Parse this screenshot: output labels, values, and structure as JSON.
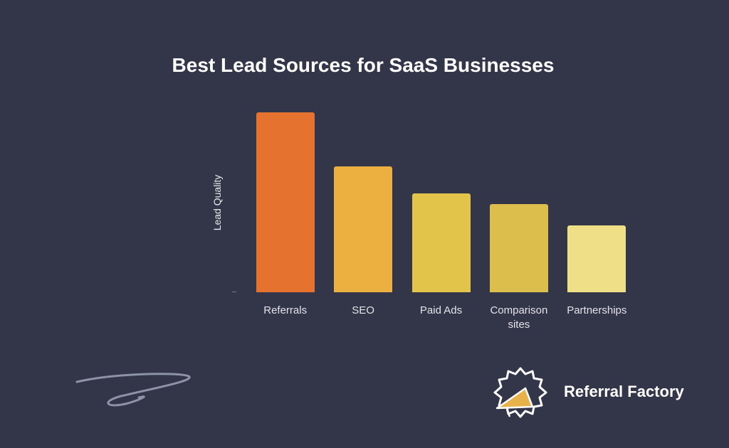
{
  "chart_data": {
    "type": "bar",
    "title": "Best Lead Sources for SaaS Businesses",
    "y_label": "Lead Quality",
    "categories": [
      "Referrals",
      "SEO",
      "Paid Ads",
      "Comparison sites",
      "Partnerships"
    ],
    "values": [
      100,
      70,
      55,
      49,
      37
    ],
    "colors": [
      "#e5732f",
      "#ebb03f",
      "#e2c44a",
      "#dcbe4c",
      "#efdf86"
    ],
    "ylim": [
      0,
      100
    ]
  },
  "brand": "Referral Factory"
}
